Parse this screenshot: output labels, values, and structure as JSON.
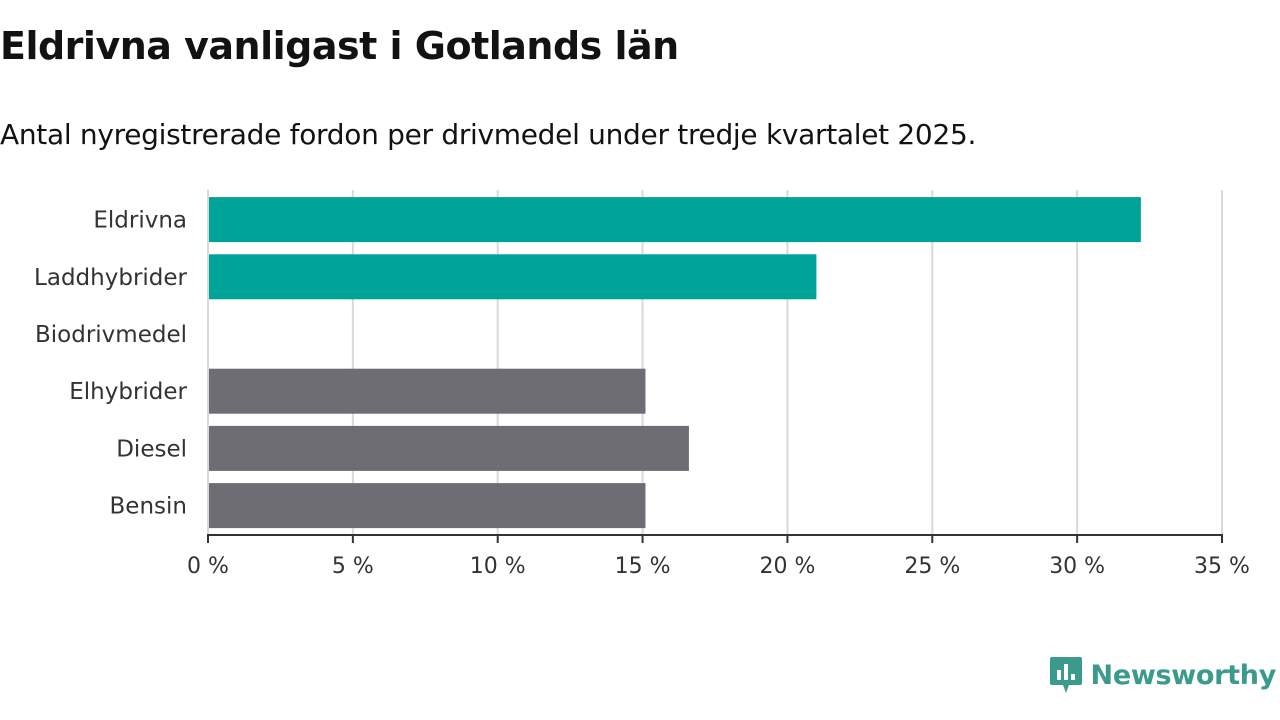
{
  "chart_data": {
    "type": "bar",
    "orientation": "horizontal",
    "title": "Eldrivna vanligast i Gotlands län",
    "subtitle": "Antal nyregistrerade fordon per drivmedel under tredje kvartalet 2025.",
    "categories": [
      "Eldrivna",
      "Laddhybrider",
      "Biodrivmedel",
      "Elhybrider",
      "Diesel",
      "Bensin"
    ],
    "values": [
      32.2,
      21.0,
      0,
      15.1,
      16.6,
      15.1
    ],
    "highlighted": [
      true,
      true,
      false,
      false,
      false,
      false
    ],
    "x_ticks": [
      "0 %",
      "5 %",
      "10 %",
      "15 %",
      "20 %",
      "25 %",
      "30 %",
      "35 %"
    ],
    "x_tick_values": [
      0,
      5,
      10,
      15,
      20,
      25,
      30,
      35
    ],
    "xlim": [
      0,
      35
    ],
    "xlabel": "",
    "ylabel": "",
    "grid": true
  },
  "colors": {
    "highlight": "#00a398",
    "default": "#6e6d73",
    "grid": "#d9d9d9",
    "axis": "#333333",
    "brand": "#3a9a8c"
  },
  "brand": {
    "name": "Newsworthy",
    "icon": "newsworthy-logo-icon"
  }
}
